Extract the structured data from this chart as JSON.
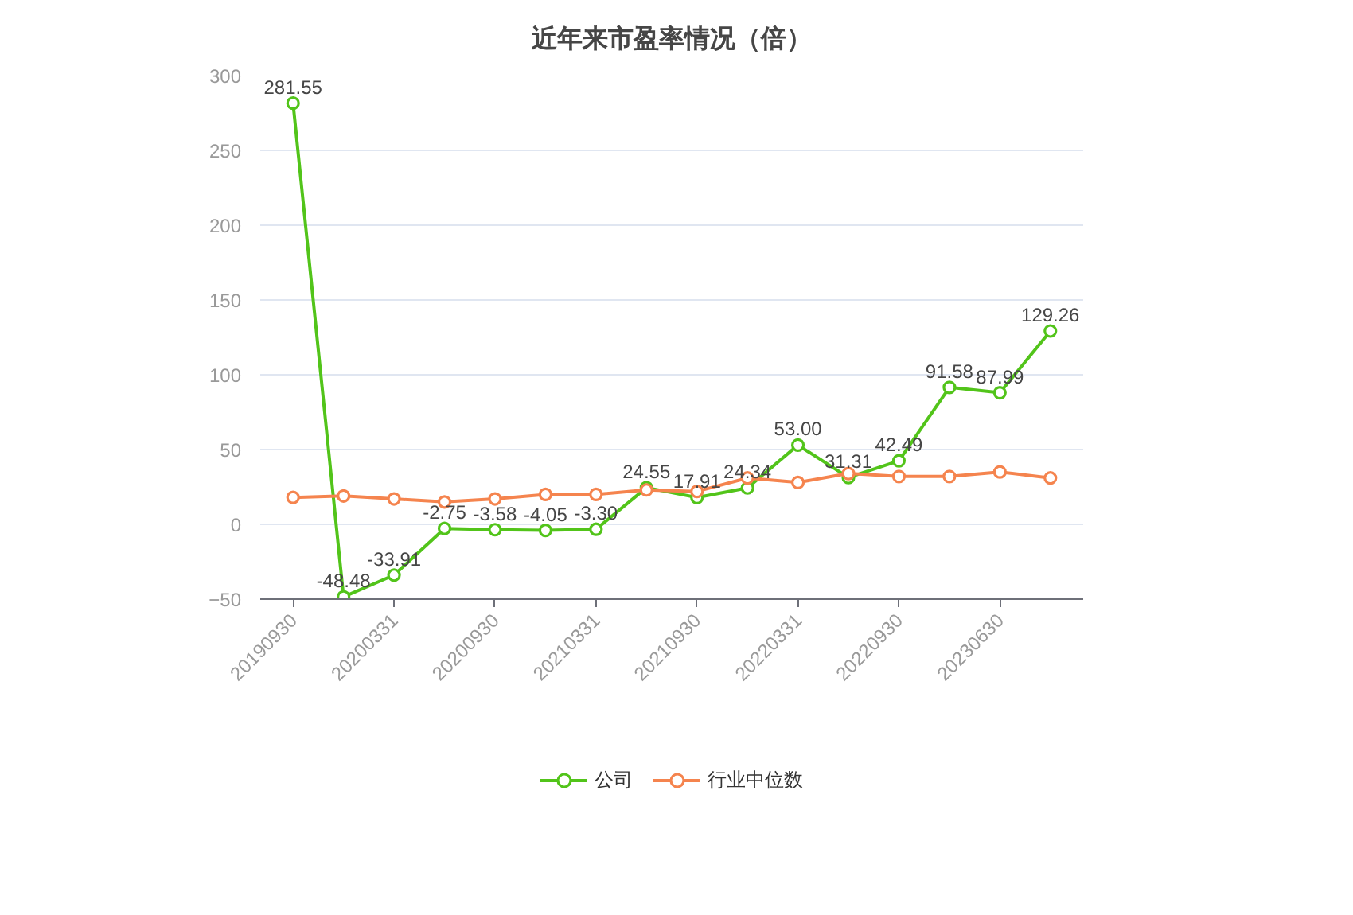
{
  "chart_data": {
    "type": "line",
    "title": "近年来市盈率情况（倍）",
    "categories": [
      "20190930",
      null,
      "20200331",
      null,
      "20200930",
      null,
      "20210331",
      null,
      "20210930",
      null,
      "20220331",
      null,
      "20220930",
      null,
      "20230630",
      null
    ],
    "ylim": [
      -50,
      300
    ],
    "yticks": [
      -50,
      0,
      50,
      100,
      150,
      200,
      250,
      300
    ],
    "grid": "y",
    "legend": "bottom",
    "marker": "circle",
    "line_style": "solid",
    "series": [
      {
        "name": "公司",
        "color": "#52c41a",
        "values": [
          281.55,
          -48.48,
          -33.91,
          -2.75,
          -3.58,
          -4.05,
          -3.3,
          24.55,
          17.91,
          24.34,
          53.0,
          31.31,
          42.49,
          91.58,
          87.99,
          129.26
        ],
        "value_labels": [
          "281.55",
          "-48.48",
          "-33.91",
          "-2.75",
          "-3.58",
          "-4.05",
          "-3.30",
          "24.55",
          "17.91",
          "24.34",
          "53.00",
          "31.31",
          "42.49",
          "91.58",
          "87.99",
          "129.26"
        ]
      },
      {
        "name": "行业中位数",
        "color": "#f5844e",
        "values": [
          18,
          19,
          17,
          15,
          17,
          20,
          20,
          23,
          22,
          31,
          28,
          34,
          32,
          32,
          35,
          31
        ]
      }
    ]
  }
}
